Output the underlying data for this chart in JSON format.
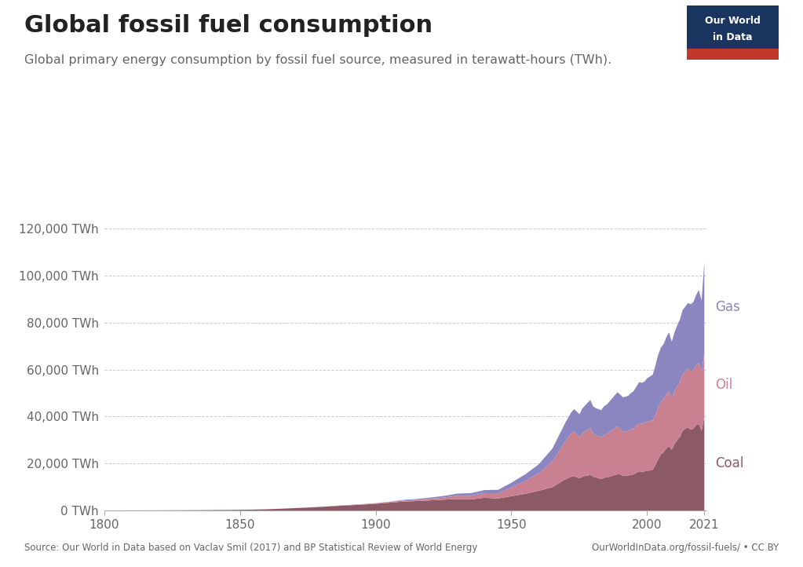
{
  "title": "Global fossil fuel consumption",
  "subtitle": "Global primary energy consumption by fossil fuel source, measured in terawatt-hours (TWh).",
  "source_left": "Source: Our World in Data based on Vaclav Smil (2017) and BP Statistical Review of World Energy",
  "source_right": "OurWorldInData.org/fossil-fuels/ • CC BY",
  "background_color": "#ffffff",
  "coal_color": "#8B5A65",
  "oil_color": "#C98090",
  "gas_color": "#8B85C0",
  "title_fontsize": 22,
  "subtitle_fontsize": 11.5,
  "label_fontsize": 12,
  "years": [
    1800,
    1810,
    1820,
    1830,
    1840,
    1850,
    1855,
    1860,
    1865,
    1870,
    1875,
    1880,
    1885,
    1890,
    1895,
    1900,
    1905,
    1910,
    1915,
    1920,
    1925,
    1930,
    1935,
    1940,
    1945,
    1950,
    1955,
    1960,
    1965,
    1970,
    1971,
    1972,
    1973,
    1974,
    1975,
    1976,
    1977,
    1978,
    1979,
    1980,
    1981,
    1982,
    1983,
    1984,
    1985,
    1986,
    1987,
    1988,
    1989,
    1990,
    1991,
    1992,
    1993,
    1994,
    1995,
    1996,
    1997,
    1998,
    1999,
    2000,
    2001,
    2002,
    2003,
    2004,
    2005,
    2006,
    2007,
    2008,
    2009,
    2010,
    2011,
    2012,
    2013,
    2014,
    2015,
    2016,
    2017,
    2018,
    2019,
    2020,
    2021
  ],
  "coal": [
    98,
    115,
    140,
    180,
    260,
    380,
    490,
    630,
    850,
    1100,
    1350,
    1650,
    2000,
    2300,
    2600,
    2950,
    3400,
    3900,
    4100,
    4400,
    4700,
    5000,
    4800,
    5500,
    5200,
    6200,
    7200,
    8500,
    10000,
    13500,
    14000,
    14500,
    14800,
    14200,
    13800,
    14500,
    14800,
    15000,
    15200,
    14500,
    14200,
    13800,
    13500,
    14000,
    14200,
    14500,
    14800,
    15200,
    15500,
    15500,
    14800,
    14800,
    15000,
    15200,
    15500,
    16200,
    16800,
    16500,
    16800,
    17000,
    17200,
    17500,
    19500,
    22000,
    24000,
    25000,
    26500,
    27500,
    26000,
    28500,
    30000,
    31500,
    34000,
    35000,
    35500,
    34500,
    35000,
    36500,
    37000,
    34000,
    40000
  ],
  "oil": [
    0,
    0,
    0,
    0,
    0,
    0,
    0,
    5,
    8,
    12,
    20,
    40,
    70,
    120,
    160,
    210,
    300,
    450,
    550,
    700,
    900,
    1400,
    1600,
    2000,
    2200,
    3800,
    5500,
    7500,
    11000,
    16500,
    17500,
    18500,
    19000,
    18500,
    17500,
    18500,
    19000,
    19500,
    20000,
    18500,
    18000,
    18000,
    17800,
    18500,
    18500,
    19000,
    19500,
    20000,
    20500,
    19500,
    19000,
    19000,
    19000,
    19500,
    19500,
    20000,
    20500,
    20500,
    20500,
    21000,
    21000,
    21000,
    21500,
    22000,
    22500,
    22500,
    23000,
    23500,
    22000,
    22500,
    23000,
    23500,
    24000,
    24500,
    25000,
    25000,
    25000,
    25500,
    26000,
    25000,
    27000
  ],
  "gas": [
    0,
    0,
    0,
    0,
    0,
    0,
    0,
    0,
    0,
    0,
    0,
    0,
    0,
    20,
    40,
    80,
    150,
    250,
    350,
    500,
    700,
    900,
    1100,
    1300,
    1500,
    2000,
    2800,
    3800,
    5500,
    8000,
    8500,
    9000,
    9500,
    9500,
    9800,
    10500,
    11000,
    11500,
    12000,
    11500,
    11500,
    11500,
    11500,
    12000,
    12500,
    13000,
    13500,
    14000,
    14500,
    14500,
    14500,
    14800,
    15000,
    15500,
    16000,
    16800,
    17500,
    17500,
    17800,
    18500,
    19000,
    19500,
    21000,
    22500,
    23000,
    23500,
    24500,
    25000,
    24000,
    25000,
    26000,
    26500,
    27500,
    27500,
    28000,
    28500,
    29000,
    30000,
    31000,
    30500,
    39000
  ]
}
